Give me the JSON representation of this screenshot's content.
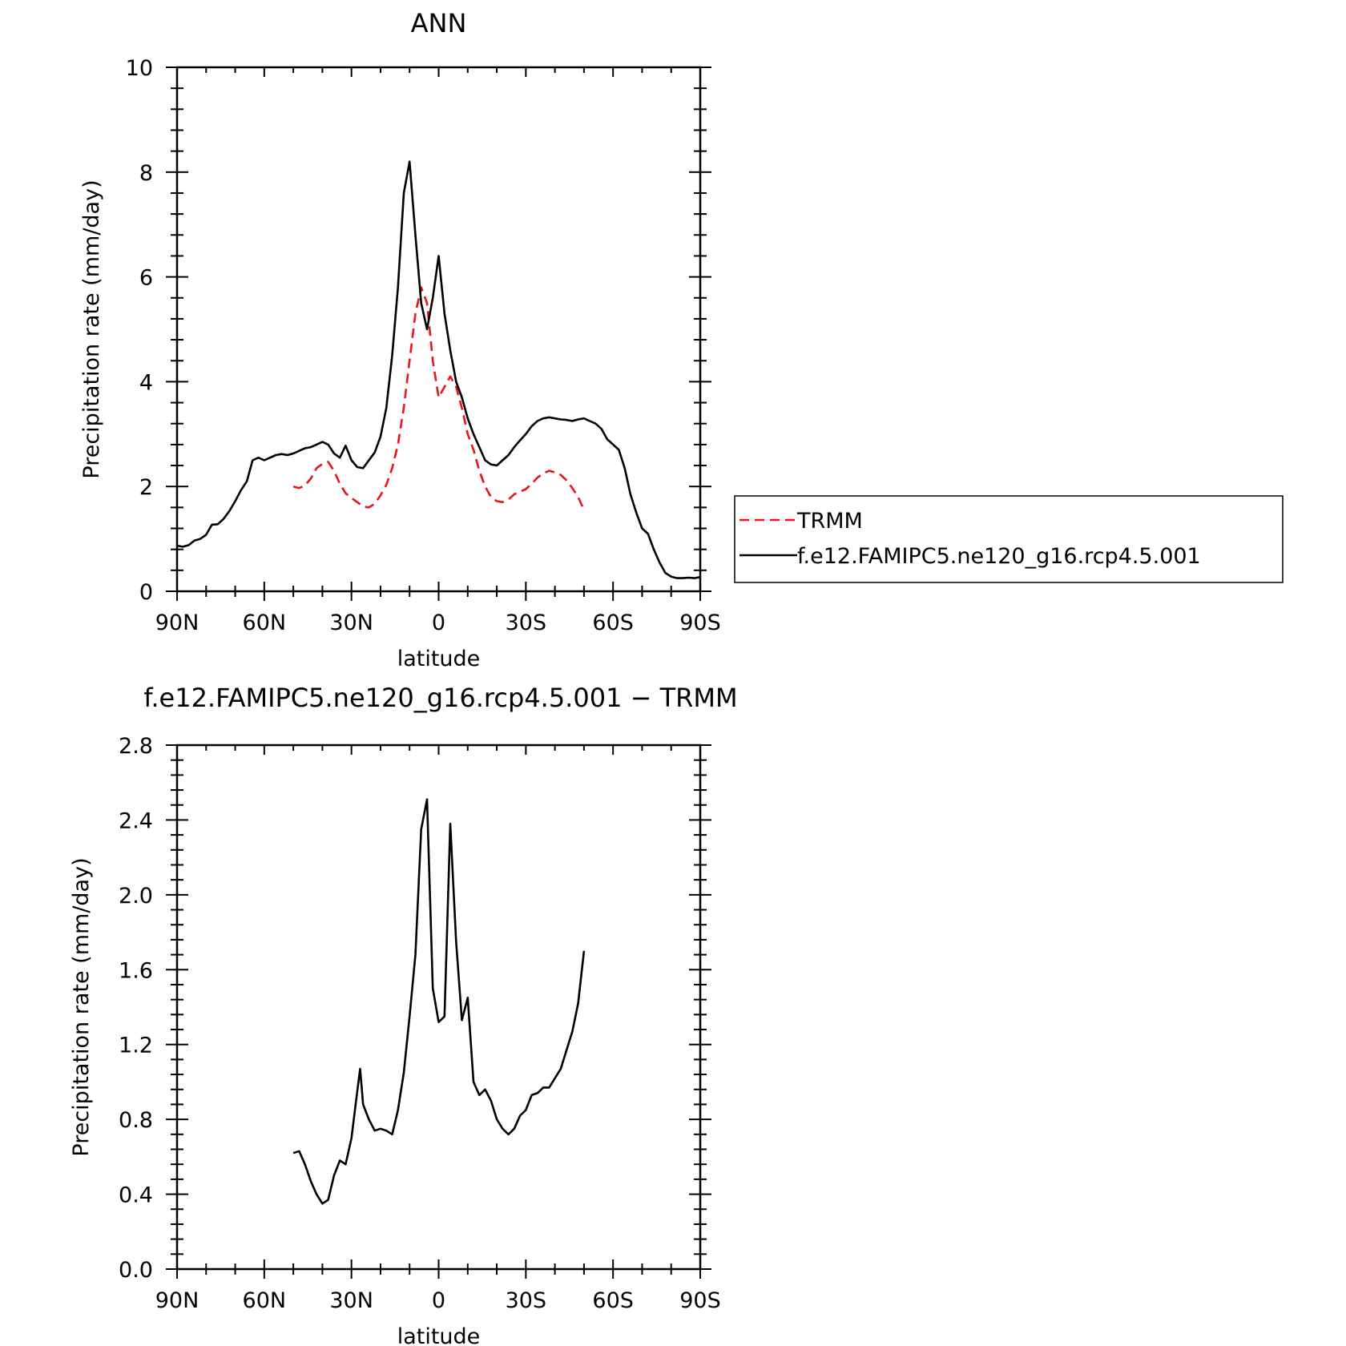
{
  "chart_data": [
    {
      "type": "line",
      "title": "ANN",
      "xlabel": "latitude",
      "ylabel": "Precipitation rate (mm/day)",
      "xlim": [
        90,
        -90
      ],
      "ylim": [
        0,
        10
      ],
      "x_tick_labels": [
        "90N",
        "60N",
        "30N",
        "0",
        "30S",
        "60S",
        "90S"
      ],
      "y_tick_labels": [
        "0",
        "2",
        "4",
        "6",
        "8",
        "10"
      ],
      "legend": {
        "placement": "right",
        "entries": [
          "TRMM",
          "f.e12.FAMIPC5.ne120_g16.rcp4.5.001"
        ]
      },
      "series": [
        {
          "name": "TRMM",
          "color": "#e8161b",
          "dash": "dashed",
          "x": [
            50,
            48,
            46,
            44,
            42,
            40,
            38,
            36,
            34,
            32,
            30,
            28,
            26,
            24,
            22,
            20,
            18,
            16,
            14,
            12,
            10,
            8,
            6,
            4,
            2,
            0,
            -2,
            -4,
            -6,
            -8,
            -10,
            -12,
            -14,
            -16,
            -18,
            -20,
            -22,
            -24,
            -26,
            -28,
            -30,
            -32,
            -34,
            -36,
            -38,
            -40,
            -42,
            -44,
            -46,
            -48,
            -50
          ],
          "y": [
            2.0,
            1.97,
            2.02,
            2.15,
            2.35,
            2.43,
            2.47,
            2.3,
            2.05,
            1.87,
            1.78,
            1.7,
            1.62,
            1.6,
            1.67,
            1.83,
            2.03,
            2.35,
            2.8,
            3.5,
            4.4,
            5.3,
            5.8,
            5.5,
            4.4,
            3.7,
            3.9,
            4.1,
            3.9,
            3.5,
            3.0,
            2.7,
            2.3,
            2.0,
            1.8,
            1.72,
            1.7,
            1.75,
            1.85,
            1.9,
            1.95,
            2.05,
            2.17,
            2.25,
            2.3,
            2.27,
            2.22,
            2.12,
            1.97,
            1.8,
            1.55
          ]
        },
        {
          "name": "f.e12.FAMIPC5.ne120_g16.rcp4.5.001",
          "color": "#000000",
          "dash": "solid",
          "x": [
            90,
            88,
            86,
            84,
            82,
            80,
            78,
            76,
            74,
            72,
            70,
            68,
            66,
            64,
            62,
            60,
            58,
            56,
            54,
            52,
            50,
            48,
            46,
            44,
            42,
            40,
            38,
            36,
            34,
            32,
            30,
            28,
            26,
            24,
            22,
            20,
            18,
            16,
            14,
            12,
            10,
            8,
            6,
            4,
            2,
            0,
            -2,
            -4,
            -6,
            -8,
            -10,
            -12,
            -14,
            -16,
            -18,
            -20,
            -22,
            -24,
            -26,
            -28,
            -30,
            -32,
            -34,
            -36,
            -38,
            -40,
            -42,
            -44,
            -46,
            -48,
            -50,
            -52,
            -54,
            -56,
            -58,
            -60,
            -62,
            -64,
            -66,
            -68,
            -70,
            -72,
            -74,
            -76,
            -78,
            -80,
            -82,
            -84,
            -86,
            -88,
            -90
          ],
          "y": [
            0.87,
            0.85,
            0.88,
            0.97,
            1.0,
            1.08,
            1.27,
            1.28,
            1.38,
            1.53,
            1.72,
            1.93,
            2.1,
            2.5,
            2.55,
            2.5,
            2.55,
            2.6,
            2.62,
            2.6,
            2.63,
            2.68,
            2.73,
            2.75,
            2.8,
            2.85,
            2.8,
            2.63,
            2.55,
            2.78,
            2.5,
            2.37,
            2.35,
            2.5,
            2.65,
            2.95,
            3.5,
            4.5,
            5.8,
            7.6,
            8.2,
            6.8,
            5.5,
            5.0,
            5.6,
            6.4,
            5.3,
            4.6,
            4.0,
            3.7,
            3.3,
            3.0,
            2.75,
            2.5,
            2.42,
            2.4,
            2.5,
            2.6,
            2.75,
            2.88,
            3.0,
            3.15,
            3.25,
            3.3,
            3.32,
            3.3,
            3.28,
            3.27,
            3.25,
            3.28,
            3.3,
            3.25,
            3.2,
            3.1,
            2.9,
            2.8,
            2.7,
            2.35,
            1.85,
            1.5,
            1.2,
            1.1,
            0.8,
            0.55,
            0.35,
            0.28,
            0.25,
            0.25,
            0.26,
            0.25,
            0.27
          ]
        }
      ]
    },
    {
      "type": "line",
      "title": "f.e12.FAMIPC5.ne120_g16.rcp4.5.001 − TRMM",
      "xlabel": "latitude",
      "ylabel": "Precipitation rate (mm/day)",
      "xlim": [
        90,
        -90
      ],
      "ylim": [
        0,
        2.8
      ],
      "x_tick_labels": [
        "90N",
        "60N",
        "30N",
        "0",
        "30S",
        "60S",
        "90S"
      ],
      "y_tick_labels": [
        "0.0",
        "0.4",
        "0.8",
        "1.2",
        "1.6",
        "2.0",
        "2.4",
        "2.8"
      ],
      "series": [
        {
          "color": "#000000",
          "dash": "solid",
          "x": [
            50,
            48,
            46,
            44,
            42,
            40,
            38,
            36,
            34,
            32,
            30,
            28,
            27,
            26,
            24,
            22,
            20,
            18,
            16,
            14,
            12,
            10,
            8,
            6,
            4,
            2,
            0,
            -2,
            -4,
            -6,
            -8,
            -10,
            -12,
            -14,
            -16,
            -18,
            -20,
            -22,
            -24,
            -26,
            -28,
            -30,
            -32,
            -34,
            -36,
            -38,
            -40,
            -42,
            -44,
            -46,
            -48,
            -50
          ],
          "y": [
            0.62,
            0.63,
            0.56,
            0.47,
            0.4,
            0.35,
            0.37,
            0.5,
            0.58,
            0.56,
            0.7,
            0.95,
            1.07,
            0.88,
            0.8,
            0.74,
            0.75,
            0.74,
            0.72,
            0.85,
            1.05,
            1.35,
            1.68,
            2.35,
            2.51,
            1.5,
            1.32,
            1.35,
            2.38,
            1.75,
            1.33,
            1.45,
            1.0,
            0.93,
            0.96,
            0.9,
            0.8,
            0.75,
            0.72,
            0.75,
            0.82,
            0.85,
            0.93,
            0.94,
            0.97,
            0.97,
            1.02,
            1.07,
            1.17,
            1.27,
            1.42,
            1.7
          ]
        }
      ]
    }
  ]
}
